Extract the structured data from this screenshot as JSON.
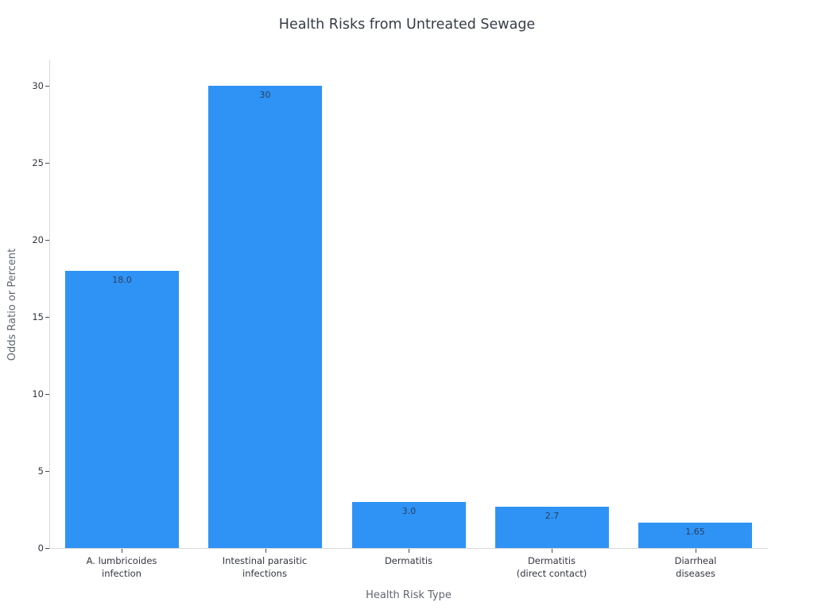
{
  "chart_data": {
    "type": "bar",
    "title": "Health Risks from Untreated Sewage",
    "xlabel": "Health Risk Type",
    "ylabel": "Odds Ratio or Percent",
    "categories": [
      "A. lumbricoides\ninfection",
      "Intestinal parasitic\ninfections",
      "Dermatitis",
      "Dermatitis\n(direct contact)",
      "Diarrheal\ndiseases"
    ],
    "values": [
      18.0,
      30,
      3.0,
      2.7,
      1.65
    ],
    "bar_labels": [
      "18.0",
      "30",
      "3.0",
      "2.7",
      "1.65"
    ],
    "yticks": [
      0,
      5,
      10,
      15,
      20,
      25,
      30
    ],
    "ylim": [
      0,
      31.7
    ],
    "grid": false,
    "legend": "none",
    "bar_color": "#2E93F5",
    "value_label_color": "#2c3e5d",
    "axis_line_color": "#d9d9d9",
    "tick_mark_color": "#4a4a4a"
  }
}
